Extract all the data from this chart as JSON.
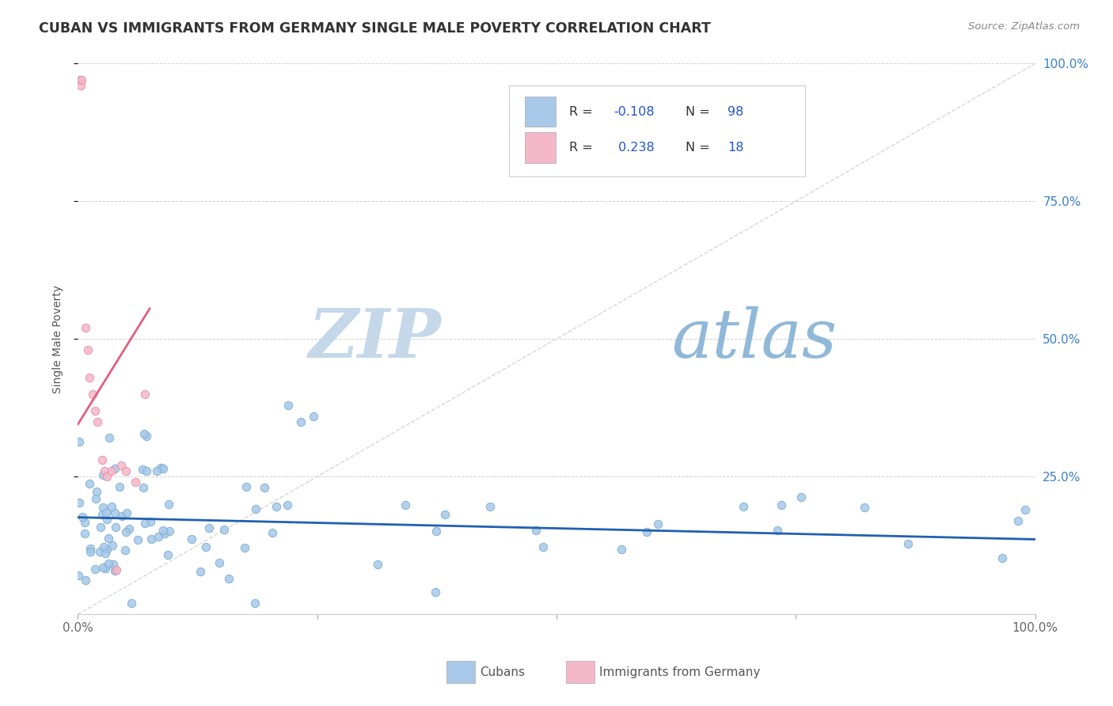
{
  "title": "CUBAN VS IMMIGRANTS FROM GERMANY SINGLE MALE POVERTY CORRELATION CHART",
  "source_text": "Source: ZipAtlas.com",
  "ylabel": "Single Male Poverty",
  "series1_label": "Cubans",
  "series2_label": "Immigrants from Germany",
  "series1_color": "#a8c8e8",
  "series2_color": "#f4b8c8",
  "series1_edge_color": "#7aafd4",
  "series2_edge_color": "#e890a8",
  "series1_line_color": "#2060b0",
  "series2_line_color": "#e06080",
  "r1": -0.108,
  "n1": 98,
  "r2": 0.238,
  "n2": 18,
  "legend_r_color": "#2255cc",
  "background_color": "#ffffff",
  "grid_color": "#cccccc",
  "diag_color": "#cccccc",
  "watermark_zip": "#c8d8e8",
  "watermark_atlas": "#90b8d8",
  "x_tick_labels": [
    "0.0%",
    "",
    "",
    "",
    "100.0%"
  ],
  "y_tick_right_labels": [
    "25.0%",
    "50.0%",
    "75.0%",
    "100.0%"
  ],
  "x_bottom_left": "0.0%",
  "x_bottom_right": "100.0%"
}
